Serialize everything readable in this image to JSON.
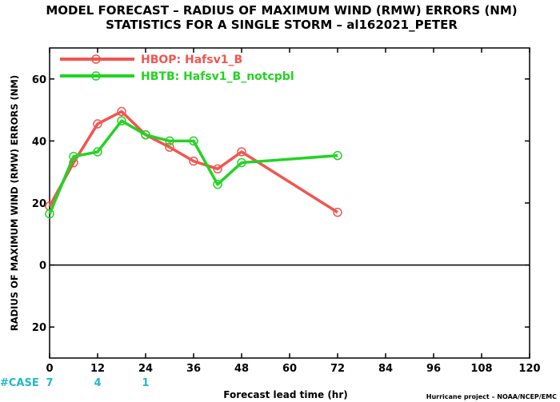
{
  "colors": {
    "hbop": "#f2554f",
    "hbtb": "#23d323",
    "case": "#1fb8c8",
    "axis": "#000000"
  },
  "chart_data": {
    "type": "line",
    "title": "MODEL FORECAST – RADIUS OF MAXIMUM WIND (RMW) ERRORS (NM)",
    "subtitle": "STATISTICS FOR A SINGLE STORM – al162021_PETER",
    "xlabel": "Forecast lead time (hr)",
    "ylabel": "RADIUS OF MAXIMUM WIND (RMW) ERRORS (NM)",
    "xlim": [
      0,
      120
    ],
    "ylim": [
      -30,
      70
    ],
    "xticks": [
      0,
      12,
      24,
      36,
      48,
      60,
      72,
      84,
      96,
      108,
      120
    ],
    "xtick_labels": [
      "0",
      "12",
      "24",
      "36",
      "48",
      "60",
      "72",
      "84",
      "96",
      "108",
      "120"
    ],
    "yticks": [
      -20,
      0,
      20,
      40,
      60
    ],
    "ytick_labels": [
      "20",
      "0",
      "20",
      "40",
      "60"
    ],
    "zero_line": true,
    "grid": false,
    "legend_placement": "top-left",
    "series": [
      {
        "name": "HBOP: Hafsv1_B",
        "color": "#f2554f",
        "x": [
          0,
          6,
          12,
          18,
          24,
          30,
          36,
          42,
          48,
          72
        ],
        "y": [
          19,
          33,
          45.5,
          49.5,
          42,
          38,
          33.5,
          31,
          36.5,
          17
        ]
      },
      {
        "name": "HBTB: Hafsv1_B_notcpbl",
        "color": "#23d323",
        "x": [
          0,
          6,
          12,
          18,
          24,
          30,
          36,
          42,
          48,
          72
        ],
        "y": [
          16.5,
          35,
          36.5,
          46.5,
          42,
          40,
          40,
          26,
          33,
          35.3
        ]
      }
    ],
    "case_label": "#CASE",
    "case_counts": [
      {
        "x": 0,
        "label": "7"
      },
      {
        "x": 12,
        "label": "4"
      },
      {
        "x": 24,
        "label": "1"
      }
    ],
    "credit": "Hurricane project – NOAA/NCEP/EMC"
  }
}
